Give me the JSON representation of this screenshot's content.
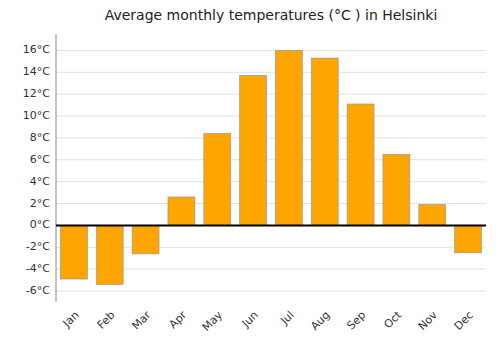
{
  "chart_data": {
    "type": "bar",
    "title": "Average monthly temperatures (°C ) in Helsinki",
    "categories": [
      "Jan",
      "Feb",
      "Mar",
      "Apr",
      "May",
      "Jun",
      "Jul",
      "Aug",
      "Sep",
      "Oct",
      "Nov",
      "Dec"
    ],
    "values": [
      -4.9,
      -5.4,
      -2.6,
      2.6,
      8.4,
      13.7,
      16.0,
      15.3,
      11.1,
      6.5,
      1.9,
      -2.5
    ],
    "color": "#FFA500",
    "ylim": [
      -7,
      17.5
    ],
    "yticks": [
      {
        "value": -6,
        "label": "-6°C"
      },
      {
        "value": -4,
        "label": "-4°C"
      },
      {
        "value": -2,
        "label": "-2°C"
      },
      {
        "value": 0,
        "label": "0°C"
      },
      {
        "value": 2,
        "label": "2°C"
      },
      {
        "value": 4,
        "label": "4°C"
      },
      {
        "value": 6,
        "label": "6°C"
      },
      {
        "value": 8,
        "label": "8°C"
      },
      {
        "value": 10,
        "label": "10°C"
      },
      {
        "value": 12,
        "label": "12°C"
      },
      {
        "value": 14,
        "label": "14°C"
      },
      {
        "value": 16,
        "label": "16°C"
      }
    ],
    "grid": true
  }
}
